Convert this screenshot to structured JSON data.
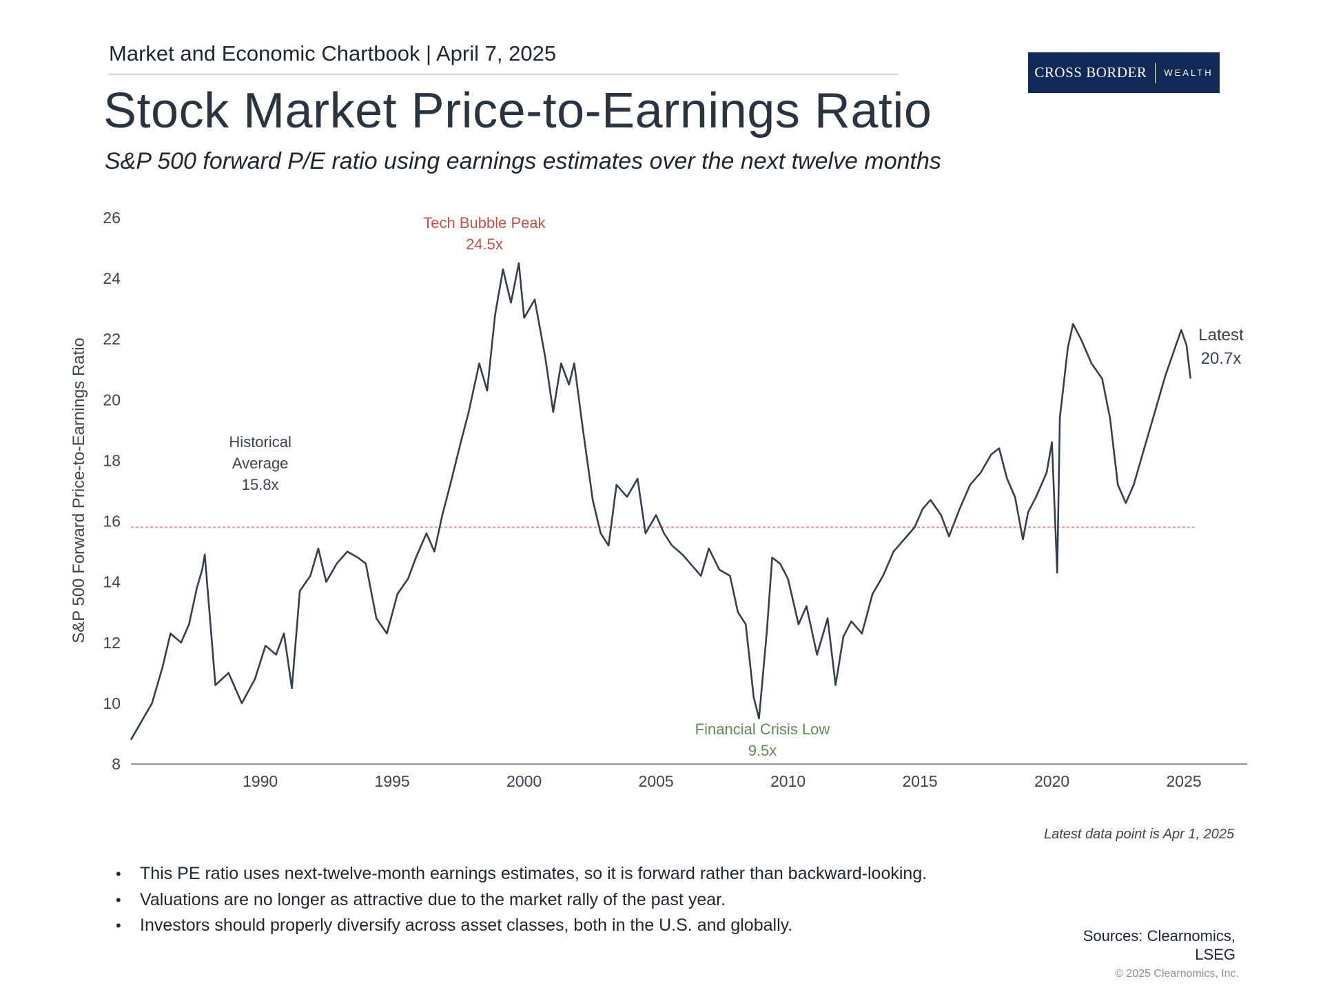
{
  "header": {
    "chartbook": "Market and Economic Chartbook | April 7, 2025",
    "title": "Stock Market Price-to-Earnings Ratio",
    "subtitle": "S&P 500 forward P/E ratio using earnings estimates over the next twelve months"
  },
  "logo": {
    "main": "CROSS BORDER",
    "sub": "WEALTH",
    "background": "#102a55"
  },
  "colors": {
    "line": "#36404c",
    "average_line": "#d9847f",
    "tech_bubble": "#c0504d",
    "financial_crisis": "#5f8a54",
    "axis_text": "#3a4450"
  },
  "chart_data": {
    "type": "line",
    "title": "Stock Market Price-to-Earnings Ratio",
    "subtitle": "S&P 500 forward P/E ratio using earnings estimates over the next twelve months",
    "ylabel": "S&P 500 Forward Price-to-Earnings Ratio",
    "xlabel": "",
    "ylim": [
      8,
      26
    ],
    "xlim": [
      1985.1,
      2027.4
    ],
    "yticks": [
      8,
      10,
      12,
      14,
      16,
      18,
      20,
      22,
      24,
      26
    ],
    "xticks": [
      1990,
      1995,
      2000,
      2005,
      2010,
      2015,
      2020,
      2025
    ],
    "grid": false,
    "series": [
      {
        "x": [
          1985.1,
          1985.5,
          1985.9,
          1986.3,
          1986.6,
          1987.0,
          1987.3,
          1987.6,
          1987.8,
          1987.9,
          1988.3,
          1988.8,
          1989.3,
          1989.8,
          1990.2,
          1990.6,
          1990.9,
          1991.2,
          1991.5,
          1991.9,
          1992.2,
          1992.5,
          1992.9,
          1993.3,
          1993.7,
          1994.0,
          1994.4,
          1994.8,
          1995.2,
          1995.6,
          1995.9,
          1996.3,
          1996.6,
          1996.9,
          1997.2,
          1997.6,
          1997.9,
          1998.3,
          1998.6,
          1998.9,
          1999.2,
          1999.5,
          1999.8,
          2000.0,
          2000.4,
          2000.8,
          2001.1,
          2001.4,
          2001.7,
          2001.9,
          2002.2,
          2002.6,
          2002.9,
          2003.2,
          2003.5,
          2003.9,
          2004.3,
          2004.6,
          2005.0,
          2005.3,
          2005.6,
          2006.0,
          2006.3,
          2006.7,
          2007.0,
          2007.4,
          2007.8,
          2008.1,
          2008.4,
          2008.7,
          2008.9,
          2009.2,
          2009.4,
          2009.7,
          2010.0,
          2010.4,
          2010.7,
          2011.1,
          2011.5,
          2011.8,
          2012.1,
          2012.4,
          2012.8,
          2013.2,
          2013.6,
          2014.0,
          2014.4,
          2014.8,
          2015.1,
          2015.4,
          2015.8,
          2016.1,
          2016.5,
          2016.9,
          2017.3,
          2017.7,
          2018.0,
          2018.3,
          2018.6,
          2018.9,
          2019.1,
          2019.4,
          2019.8,
          2020.0,
          2020.2,
          2020.3,
          2020.6,
          2020.8,
          2021.1,
          2021.5,
          2021.9,
          2022.2,
          2022.5,
          2022.8,
          2023.1,
          2023.5,
          2023.9,
          2024.3,
          2024.7,
          2024.9,
          2025.1,
          2025.25
        ],
        "values": [
          8.8,
          9.4,
          10.0,
          11.2,
          12.3,
          12.0,
          12.6,
          13.8,
          14.4,
          14.9,
          10.6,
          11.0,
          10.0,
          10.8,
          11.9,
          11.6,
          12.3,
          10.5,
          13.7,
          14.2,
          15.1,
          14.0,
          14.6,
          15.0,
          14.8,
          14.6,
          12.8,
          12.3,
          13.6,
          14.1,
          14.8,
          15.6,
          15.0,
          16.2,
          17.2,
          18.6,
          19.6,
          21.2,
          20.3,
          22.8,
          24.3,
          23.2,
          24.5,
          22.7,
          23.3,
          21.4,
          19.6,
          21.2,
          20.5,
          21.2,
          19.2,
          16.7,
          15.6,
          15.2,
          17.2,
          16.8,
          17.4,
          15.6,
          16.2,
          15.6,
          15.2,
          14.9,
          14.6,
          14.2,
          15.1,
          14.4,
          14.2,
          13.0,
          12.6,
          10.2,
          9.5,
          12.4,
          14.8,
          14.6,
          14.1,
          12.6,
          13.2,
          11.6,
          12.8,
          10.6,
          12.2,
          12.7,
          12.3,
          13.6,
          14.2,
          15.0,
          15.4,
          15.8,
          16.4,
          16.7,
          16.2,
          15.5,
          16.4,
          17.2,
          17.6,
          18.2,
          18.4,
          17.4,
          16.8,
          15.4,
          16.3,
          16.8,
          17.6,
          18.6,
          14.3,
          19.4,
          21.7,
          22.5,
          22.0,
          21.2,
          20.7,
          19.4,
          17.2,
          16.6,
          17.2,
          18.4,
          19.6,
          20.8,
          21.8,
          22.3,
          21.8,
          20.7
        ]
      }
    ],
    "annotations": [
      {
        "text": "Tech Bubble Peak",
        "value_text": "24.5x",
        "x": 1999.8,
        "y": 24.5
      },
      {
        "text": "Financial Crisis Low",
        "value_text": "9.5x",
        "x": 2008.9,
        "y": 9.5
      },
      {
        "text": "Historical",
        "text2": "Average",
        "value_text": "15.8x",
        "y": 15.8
      },
      {
        "text": "Latest",
        "value_text": "20.7x",
        "x": 2025.25,
        "y": 20.7
      }
    ],
    "average": 15.8,
    "footnote": "Latest data point is Apr 1, 2025"
  },
  "bullets": [
    "This PE ratio uses next-twelve-month earnings estimates, so it is forward rather than backward-looking.",
    "Valuations are no longer as attractive due to the market rally of the past year.",
    "Investors should properly diversify across asset classes, both in the U.S. and globally."
  ],
  "sources": {
    "line1": "Sources: Clearnomics,",
    "line2": "LSEG"
  },
  "copyright": "© 2025 Clearnomics, Inc."
}
